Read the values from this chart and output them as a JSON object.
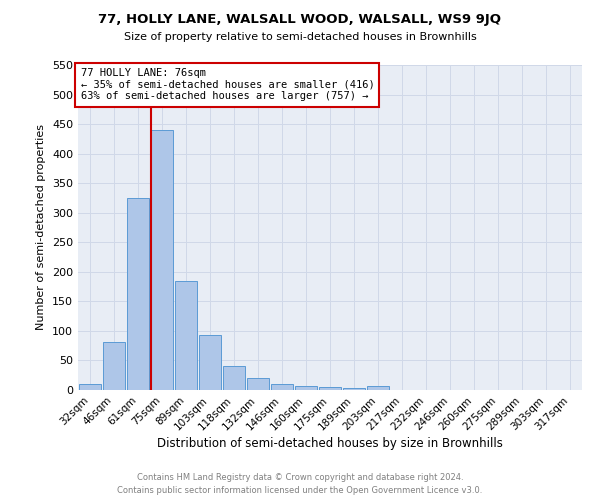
{
  "title": "77, HOLLY LANE, WALSALL WOOD, WALSALL, WS9 9JQ",
  "subtitle": "Size of property relative to semi-detached houses in Brownhills",
  "xlabel": "Distribution of semi-detached houses by size in Brownhills",
  "ylabel": "Number of semi-detached properties",
  "categories": [
    "32sqm",
    "46sqm",
    "61sqm",
    "75sqm",
    "89sqm",
    "103sqm",
    "118sqm",
    "132sqm",
    "146sqm",
    "160sqm",
    "175sqm",
    "189sqm",
    "203sqm",
    "217sqm",
    "232sqm",
    "246sqm",
    "260sqm",
    "275sqm",
    "289sqm",
    "303sqm",
    "317sqm"
  ],
  "values": [
    10,
    81,
    325,
    440,
    184,
    93,
    40,
    20,
    10,
    7,
    5,
    4,
    6,
    0,
    0,
    0,
    0,
    0,
    0,
    0,
    0
  ],
  "bar_color": "#aec6e8",
  "bar_edge_color": "#5b9bd5",
  "property_label": "77 HOLLY LANE: 76sqm",
  "smaller_pct": 35,
  "smaller_count": 416,
  "larger_pct": 63,
  "larger_count": 757,
  "vline_color": "#cc0000",
  "annotation_box_color": "#cc0000",
  "ylim": [
    0,
    550
  ],
  "yticks": [
    0,
    50,
    100,
    150,
    200,
    250,
    300,
    350,
    400,
    450,
    500,
    550
  ],
  "grid_color": "#d0d8e8",
  "bg_color": "#e8edf5",
  "footer_line1": "Contains HM Land Registry data © Crown copyright and database right 2024.",
  "footer_line2": "Contains public sector information licensed under the Open Government Licence v3.0."
}
